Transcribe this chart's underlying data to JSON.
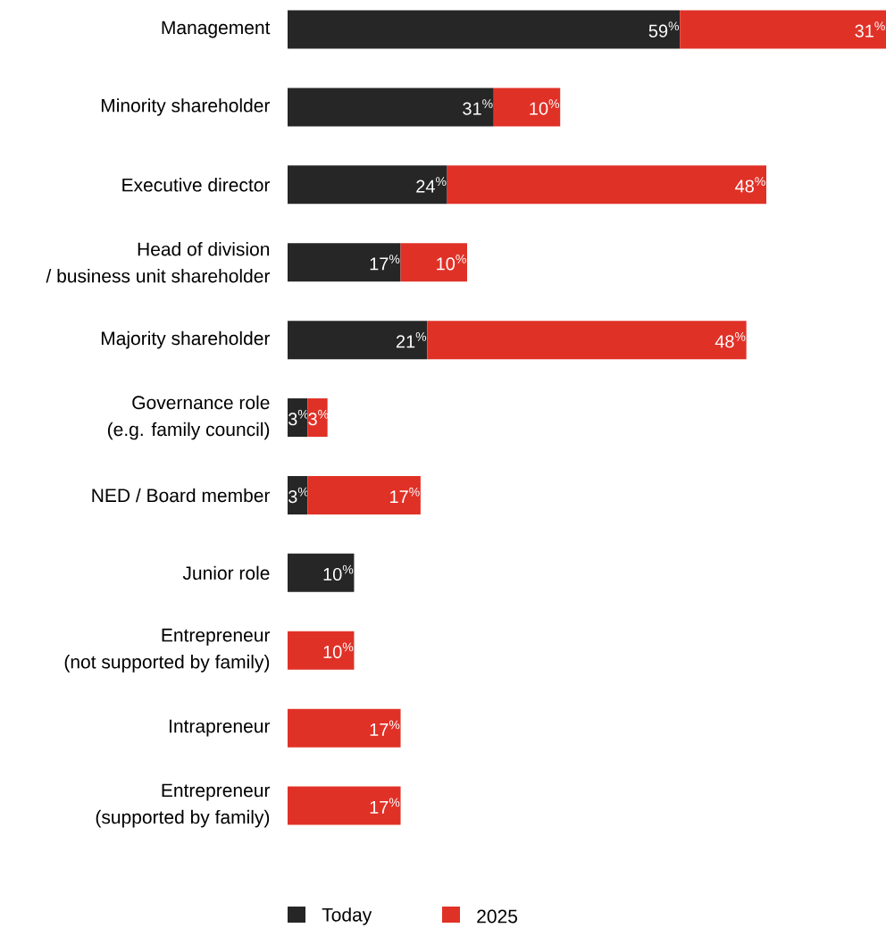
{
  "chart_data": {
    "type": "bar",
    "orientation": "horizontal",
    "stacked": true,
    "categories": [
      "Management",
      "Minority shareholder",
      "Executive director",
      "Head of division\n/ business unit shareholder",
      "Majority shareholder",
      "Governance role\n(e.g. family council)",
      "NED / Board member",
      "Junior role",
      "Entrepreneur\n(not supported by family)",
      "Intrapreneur",
      "Entrepreneur\n(supported by family)"
    ],
    "series": [
      {
        "name": "Today",
        "color": "#262626",
        "values": [
          59,
          31,
          24,
          17,
          21,
          3,
          3,
          10,
          null,
          null,
          null
        ],
        "value_labels": [
          "59$^{%}$",
          "31$^{%}$",
          "24$^{%}$",
          "17$^{%}$",
          "21$^{%}$",
          "3$^{%}$",
          "3$^{%}$",
          "10$^{%}$",
          null,
          null,
          null
        ]
      },
      {
        "name": "2025",
        "color": "#e03127",
        "values": [
          31,
          10,
          48,
          10,
          48,
          3,
          17,
          null,
          10,
          17,
          17
        ],
        "value_labels": [
          "31$^{%}$",
          "10$^{%}$",
          "48$^{%}$",
          "10$^{%}$",
          "48$^{%}$",
          "3$^{%}$",
          "17$^{%}$",
          null,
          "10$^{%}$",
          "17$^{%}$",
          "17$^{%}$"
        ]
      }
    ],
    "xlim": [
      0,
      90
    ],
    "tick_labels": "y",
    "legend": "bottom"
  }
}
